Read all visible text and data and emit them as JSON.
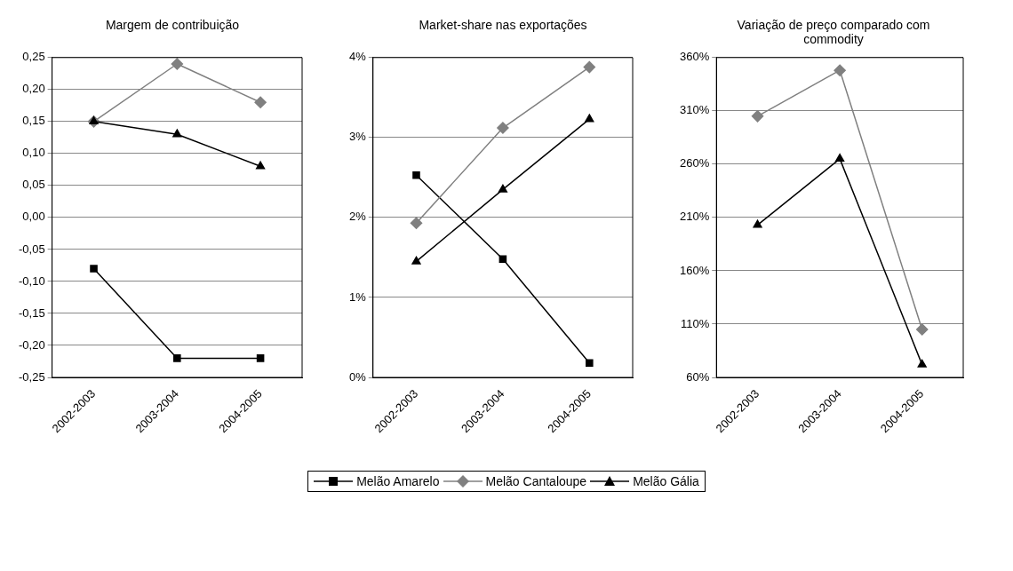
{
  "chart_data": [
    {
      "type": "line",
      "title": "Margem de contribuição",
      "categories": [
        "2002-2003",
        "2003-2004",
        "2004-2005"
      ],
      "ylim": [
        -0.25,
        0.25
      ],
      "yticks": [
        {
          "value": -0.25,
          "label": "-0,25"
        },
        {
          "value": -0.2,
          "label": "-0,20"
        },
        {
          "value": -0.15,
          "label": "-0,15"
        },
        {
          "value": -0.1,
          "label": "-0,10"
        },
        {
          "value": -0.05,
          "label": "-0,05"
        },
        {
          "value": 0,
          "label": "0,00"
        },
        {
          "value": 0.05,
          "label": "0,05"
        },
        {
          "value": 0.1,
          "label": "0,10"
        },
        {
          "value": 0.15,
          "label": "0,15"
        },
        {
          "value": 0.2,
          "label": "0,20"
        },
        {
          "value": 0.25,
          "label": "0,25"
        }
      ],
      "grid": "y",
      "line_style": "solid",
      "legend": "bottom",
      "series": [
        {
          "name": "Melão Amarelo",
          "color": "#000000",
          "marker": "square",
          "values": [
            -0.08,
            -0.22,
            -0.22
          ]
        },
        {
          "name": "Melão Cantaloupe",
          "color": "#808080",
          "marker": "diamond",
          "values": [
            0.15,
            0.24,
            0.18
          ]
        },
        {
          "name": "Melão Gália",
          "color": "#000000",
          "marker": "triangle",
          "values": [
            0.15,
            0.13,
            0.08
          ]
        }
      ]
    },
    {
      "type": "line",
      "title": "Market-share nas exportações",
      "categories": [
        "2002-2003",
        "2003-2004",
        "2004-2005"
      ],
      "ylim": [
        0,
        4
      ],
      "yticks": [
        {
          "value": 0,
          "label": "0%"
        },
        {
          "value": 1,
          "label": "1%"
        },
        {
          "value": 2,
          "label": "2%"
        },
        {
          "value": 3,
          "label": "3%"
        },
        {
          "value": 4,
          "label": "4%"
        }
      ],
      "grid": "y",
      "line_style": "solid",
      "series": [
        {
          "color": "#000000",
          "marker": "square",
          "values": [
            2.53,
            1.48,
            0.18
          ]
        },
        {
          "color": "#808080",
          "marker": "diamond",
          "values": [
            1.93,
            3.12,
            3.88
          ]
        },
        {
          "color": "#000000",
          "marker": "triangle",
          "values": [
            1.45,
            2.35,
            3.23
          ]
        }
      ]
    },
    {
      "type": "line",
      "title": "Variação de preço comparado com commodity",
      "categories": [
        "2002-2003",
        "2003-2004",
        "2004-2005"
      ],
      "ylim": [
        60,
        360
      ],
      "yticks": [
        {
          "value": 60,
          "label": "60%"
        },
        {
          "value": 110,
          "label": "110%"
        },
        {
          "value": 160,
          "label": "160%"
        },
        {
          "value": 210,
          "label": "210%"
        },
        {
          "value": 260,
          "label": "260%"
        },
        {
          "value": 310,
          "label": "310%"
        },
        {
          "value": 360,
          "label": "360%"
        }
      ],
      "grid": "y",
      "line_style": "solid",
      "series": [
        {
          "color": "#808080",
          "marker": "diamond",
          "values": [
            305,
            348,
            105
          ]
        },
        {
          "color": "#000000",
          "marker": "triangle",
          "values": [
            203,
            265,
            72
          ]
        }
      ]
    }
  ]
}
